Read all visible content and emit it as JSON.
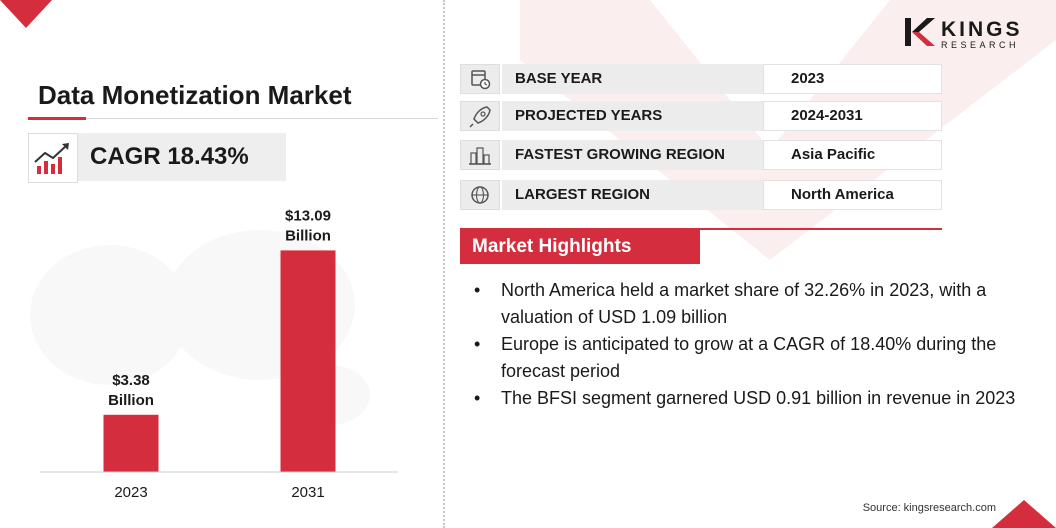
{
  "brand": {
    "logo_main": "KINGS",
    "logo_sub": "RESEARCH",
    "accent_color": "#d42e3e"
  },
  "title": "Data Monetization Market",
  "cagr": {
    "text": "CAGR 18.43%",
    "icon": "trending-up-chart-icon"
  },
  "info_rows": [
    {
      "icon": "calendar-clock-icon",
      "label": "BASE YEAR",
      "value": "2023"
    },
    {
      "icon": "rocket-icon",
      "label": "PROJECTED YEARS",
      "value": "2024-2031"
    },
    {
      "icon": "city-skyline-icon",
      "label": "FASTEST GROWING REGION",
      "value": "Asia Pacific"
    },
    {
      "icon": "globe-icon",
      "label": "LARGEST REGION",
      "value": "North America"
    }
  ],
  "highlights": {
    "heading": "Market Highlights",
    "items": [
      "North America held a market share of 32.26% in 2023, with a valuation of USD 1.09 billion",
      "Europe is anticipated to grow at a CAGR of 18.40% during the forecast period",
      "The BFSI segment garnered USD 0.91 billion in revenue in 2023"
    ]
  },
  "source": "Source: kingsresearch.com",
  "chart_data": {
    "type": "bar",
    "categories": [
      "2023",
      "2031"
    ],
    "values": [
      3.38,
      13.09
    ],
    "data_labels": [
      [
        "$3.38",
        "Billion"
      ],
      [
        "$13.09",
        "Billion"
      ]
    ],
    "title": "",
    "xlabel": "",
    "ylabel": "",
    "ylim": [
      0,
      14
    ],
    "grid": false,
    "bar_color": "#d42e3e"
  }
}
